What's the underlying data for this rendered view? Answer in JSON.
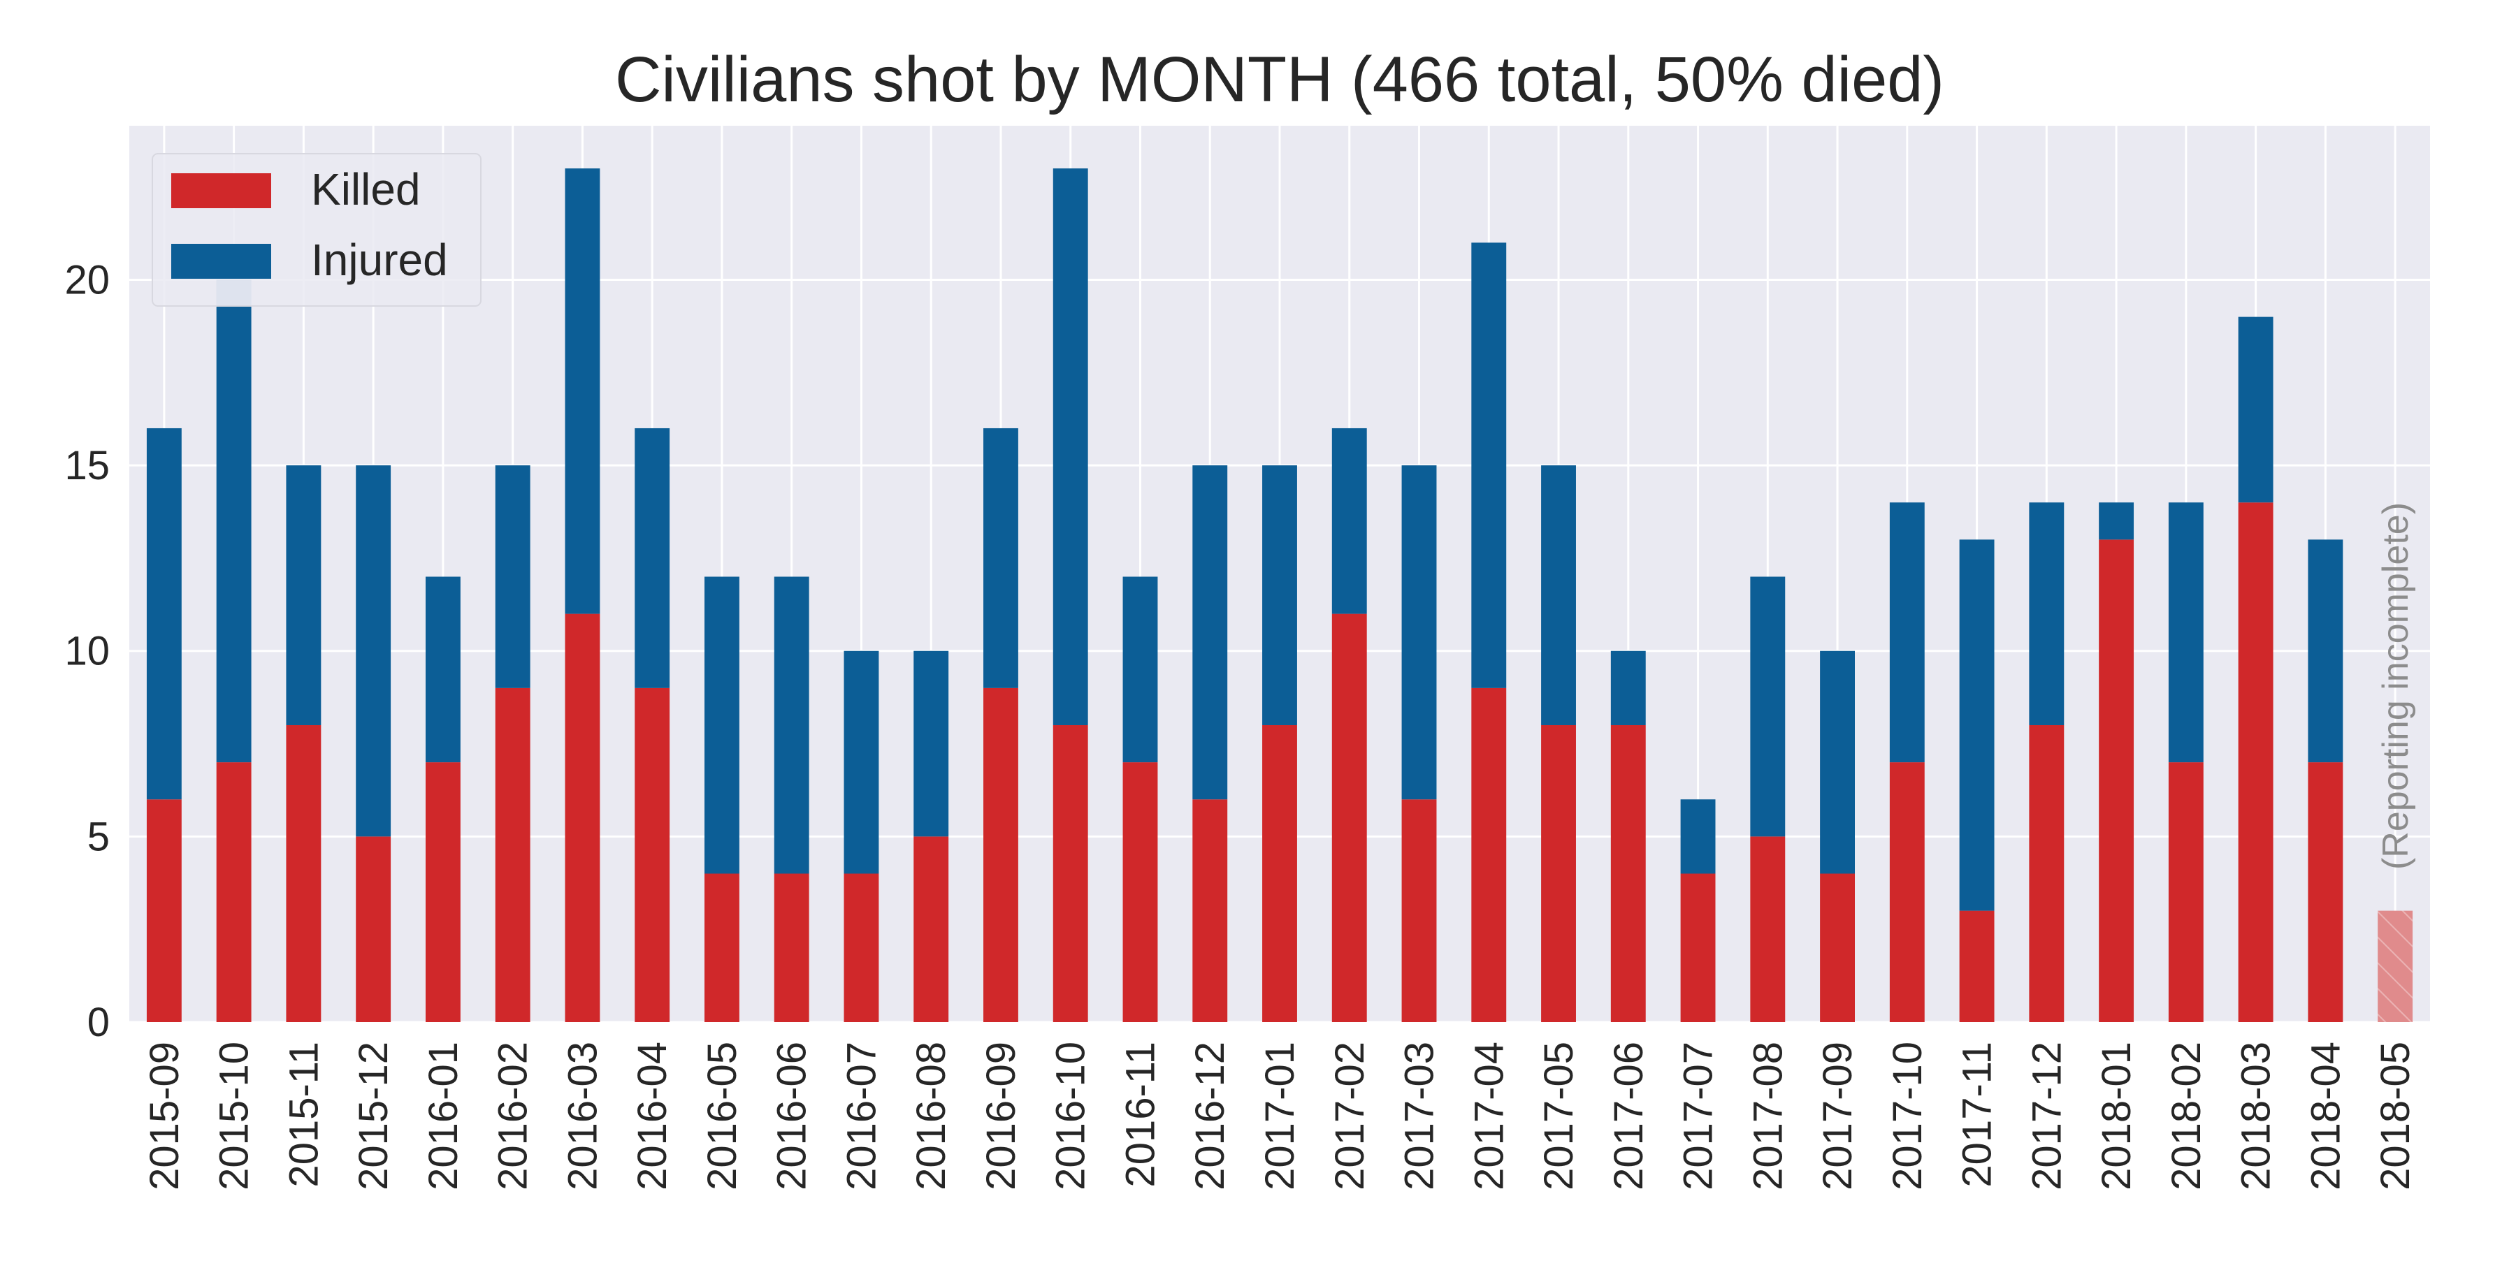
{
  "chart_data": {
    "type": "bar",
    "stacked": true,
    "title": "Civilians shot by MONTH (466 total, 50% died)",
    "xlabel": "",
    "ylabel": "",
    "ylim": [
      0,
      24.15
    ],
    "yticks": [
      0,
      5,
      10,
      15,
      20
    ],
    "grid": true,
    "legend_position": "top-left",
    "categories": [
      "2015-09",
      "2015-10",
      "2015-11",
      "2015-12",
      "2016-01",
      "2016-02",
      "2016-03",
      "2016-04",
      "2016-05",
      "2016-06",
      "2016-07",
      "2016-08",
      "2016-09",
      "2016-10",
      "2016-11",
      "2016-12",
      "2017-01",
      "2017-02",
      "2017-03",
      "2017-04",
      "2017-05",
      "2017-06",
      "2017-07",
      "2017-08",
      "2017-09",
      "2017-10",
      "2017-11",
      "2017-12",
      "2018-01",
      "2018-02",
      "2018-03",
      "2018-04",
      "2018-05"
    ],
    "series": [
      {
        "name": "Killed",
        "color": "#d0282a",
        "values": [
          6,
          7,
          8,
          5,
          7,
          9,
          11,
          9,
          4,
          4,
          4,
          5,
          9,
          8,
          7,
          6,
          8,
          11,
          6,
          9,
          8,
          8,
          4,
          5,
          4,
          7,
          3,
          8,
          13,
          7,
          14,
          7,
          3
        ]
      },
      {
        "name": "Injured",
        "color": "#0c5e96",
        "values": [
          10,
          13,
          7,
          10,
          5,
          6,
          12,
          7,
          8,
          8,
          6,
          5,
          7,
          15,
          5,
          9,
          7,
          5,
          9,
          12,
          7,
          2,
          2,
          7,
          6,
          7,
          10,
          6,
          1,
          7,
          5,
          6,
          0
        ]
      }
    ],
    "incomplete_category": "2018-05",
    "incomplete_color": "#e08b8c",
    "annotation": "(Reporting incomplete)",
    "plot_background": "#eaeaf2",
    "grid_color": "#ffffff"
  }
}
